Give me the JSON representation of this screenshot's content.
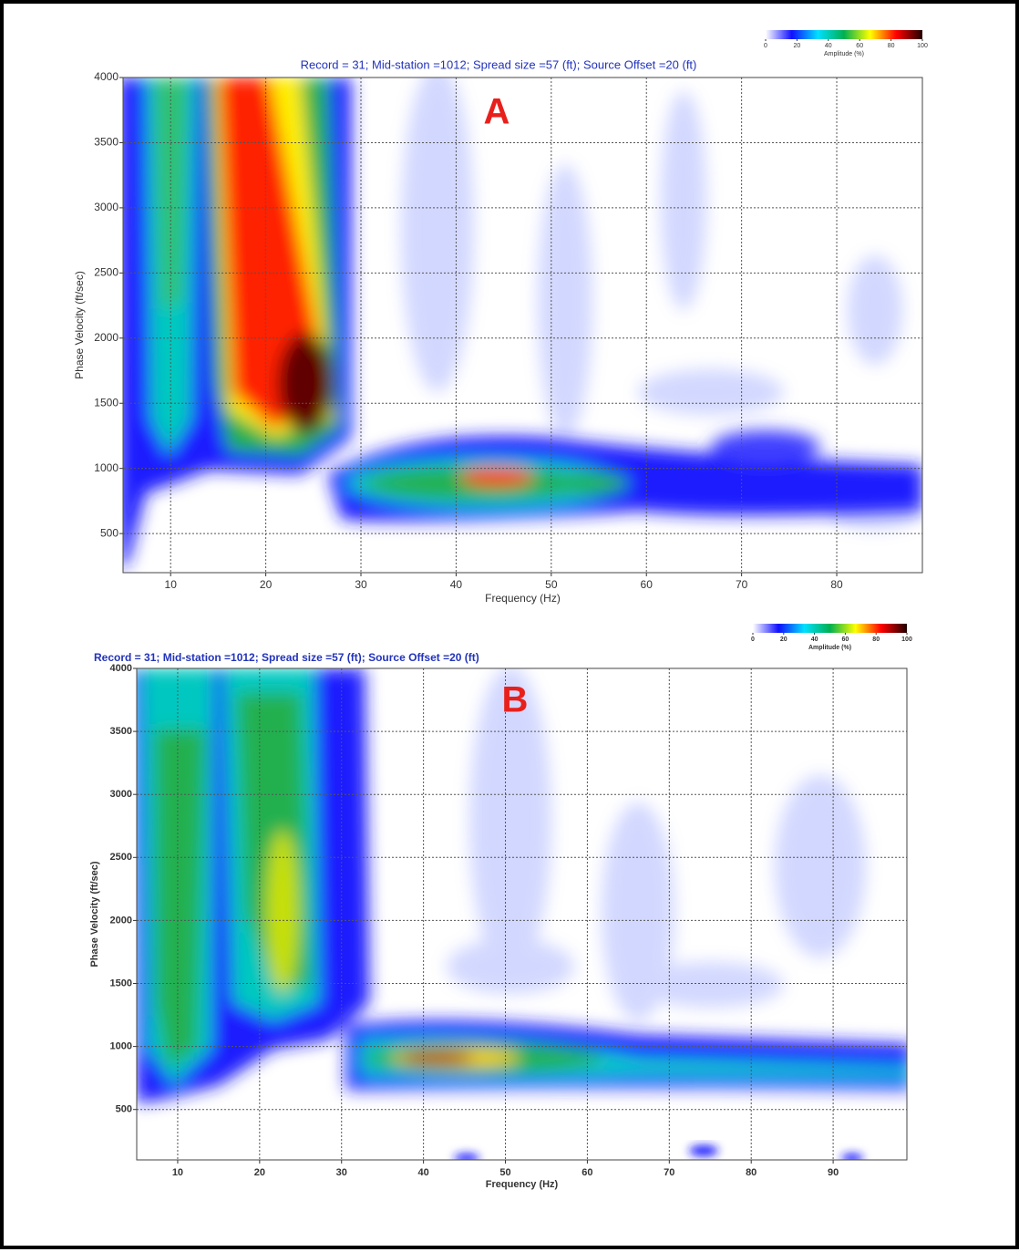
{
  "chart_data": [
    {
      "type": "heatmap",
      "title": "Record = 31; Mid-station =1012; Spread size =57 (ft); Source Offset =20 (ft)",
      "panel_label": "A",
      "x_label": "Frequency (Hz)",
      "y_label": "Phase Velocity (ft/sec)",
      "xlim": [
        5,
        89
      ],
      "xticks": [
        10,
        20,
        30,
        40,
        50,
        60,
        70,
        80
      ],
      "ylim": [
        200,
        4000
      ],
      "yticks": [
        500,
        1000,
        1500,
        2000,
        2500,
        3000,
        3500,
        4000
      ],
      "grid": true,
      "colorbar": {
        "label": "Amplitude (%)",
        "lim": [
          0,
          100
        ],
        "ticks": [
          0,
          20,
          40,
          60,
          80,
          100
        ],
        "colors": [
          "#ffffff",
          "#1010ff",
          "#00e0ff",
          "#00b050",
          "#ffff00",
          "#ff0000",
          "#200000"
        ]
      }
    },
    {
      "type": "heatmap",
      "title": "Record = 31; Mid-station =1012; Spread size =57 (ft); Source Offset =20 (ft)",
      "panel_label": "B",
      "x_label": "Frequency (Hz)",
      "y_label": "Phase Velocity (ft/sec)",
      "xlim": [
        5,
        99
      ],
      "xticks": [
        10,
        20,
        30,
        40,
        50,
        60,
        70,
        80,
        90
      ],
      "ylim": [
        100,
        4000
      ],
      "yticks": [
        500,
        1000,
        1500,
        2000,
        2500,
        3000,
        3500,
        4000
      ],
      "grid": true,
      "colorbar": {
        "label": "Amplitude (%)",
        "lim": [
          0,
          100
        ],
        "ticks": [
          0,
          20,
          40,
          60,
          80,
          100
        ],
        "colors": [
          "#ffffff",
          "#1010ff",
          "#00e0ff",
          "#00b050",
          "#ffff00",
          "#ff0000",
          "#200000"
        ]
      }
    }
  ]
}
